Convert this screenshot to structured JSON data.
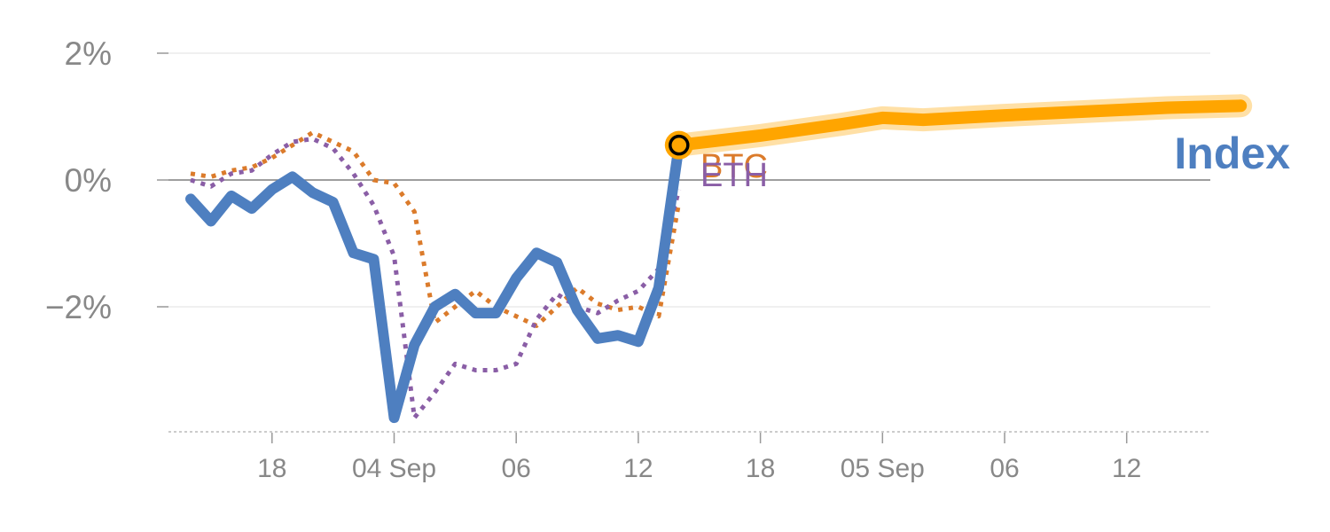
{
  "chart_data": {
    "type": "line",
    "title": "",
    "xlabel": "",
    "ylabel": "",
    "ylim": [
      -3.9,
      2.1
    ],
    "y_ticks": [
      {
        "value": 2,
        "label": "2%"
      },
      {
        "value": 0,
        "label": "0%"
      },
      {
        "value": -2,
        "label": "−2%"
      }
    ],
    "x_range": [
      0,
      25.8
    ],
    "x_ticks": [
      {
        "x": 2,
        "label": "18"
      },
      {
        "x": 5,
        "label": "04 Sep"
      },
      {
        "x": 8,
        "label": "06"
      },
      {
        "x": 11,
        "label": "12"
      },
      {
        "x": 14,
        "label": "18"
      },
      {
        "x": 17,
        "label": "05 Sep"
      },
      {
        "x": 20,
        "label": "06"
      },
      {
        "x": 23,
        "label": "12"
      }
    ],
    "grid": "horizontal",
    "zero_line": true,
    "series": [
      {
        "name": "BTC",
        "color": "#db7b2b",
        "style": "dotted",
        "x": [
          0,
          0.5,
          1,
          1.5,
          2,
          2.5,
          3,
          3.5,
          4,
          4.5,
          5,
          5.5,
          6,
          6.5,
          7,
          7.5,
          8,
          8.5,
          9,
          9.5,
          10,
          10.5,
          11,
          11.5,
          12
        ],
        "values": [
          0.1,
          0.05,
          0.15,
          0.2,
          0.35,
          0.55,
          0.75,
          0.6,
          0.45,
          0.0,
          -0.05,
          -0.5,
          -2.25,
          -2.0,
          -1.75,
          -2.0,
          -2.15,
          -2.3,
          -2.0,
          -1.7,
          -1.95,
          -2.05,
          -2.0,
          -2.15,
          -0.35
        ]
      },
      {
        "name": "ETH",
        "color": "#8a5ea6",
        "style": "dotted",
        "x": [
          0,
          0.5,
          1,
          1.5,
          2,
          2.5,
          3,
          3.5,
          4,
          4.5,
          5,
          5.5,
          6,
          6.5,
          7,
          7.5,
          8,
          8.5,
          9,
          9.5,
          10,
          10.5,
          11,
          11.5,
          12
        ],
        "values": [
          0.0,
          -0.1,
          0.1,
          0.15,
          0.4,
          0.6,
          0.65,
          0.5,
          0.1,
          -0.4,
          -1.2,
          -3.75,
          -3.35,
          -2.9,
          -3.0,
          -3.0,
          -2.9,
          -2.2,
          -1.8,
          -2.0,
          -2.1,
          -1.9,
          -1.75,
          -1.4,
          -0.15
        ]
      },
      {
        "name": "Index",
        "color": "#4e7fc0",
        "style": "solid",
        "x": [
          0,
          0.5,
          1,
          1.5,
          2,
          2.5,
          3,
          3.5,
          4,
          4.5,
          5,
          5.5,
          6,
          6.5,
          7,
          7.5,
          8,
          8.5,
          9,
          9.5,
          10,
          10.5,
          11,
          11.5,
          12
        ],
        "values": [
          -0.3,
          -0.65,
          -0.25,
          -0.45,
          -0.15,
          0.05,
          -0.2,
          -0.35,
          -1.15,
          -1.25,
          -3.75,
          -2.6,
          -2.0,
          -1.8,
          -2.1,
          -2.1,
          -1.55,
          -1.15,
          -1.3,
          -2.05,
          -2.5,
          -2.45,
          -2.55,
          -1.7,
          0.55
        ]
      }
    ],
    "projection": {
      "series": "Index",
      "color": "#ffa500",
      "x": [
        12,
        14,
        16,
        17,
        18,
        20,
        22,
        24,
        25.8
      ],
      "values": [
        0.55,
        0.7,
        0.88,
        0.98,
        0.95,
        1.02,
        1.08,
        1.14,
        1.17
      ]
    },
    "end_marker": {
      "x": 12,
      "value": 0.55,
      "ring_color": "#ffa500",
      "inner_color": "#000000"
    },
    "legend": "inline labels at line ends"
  }
}
